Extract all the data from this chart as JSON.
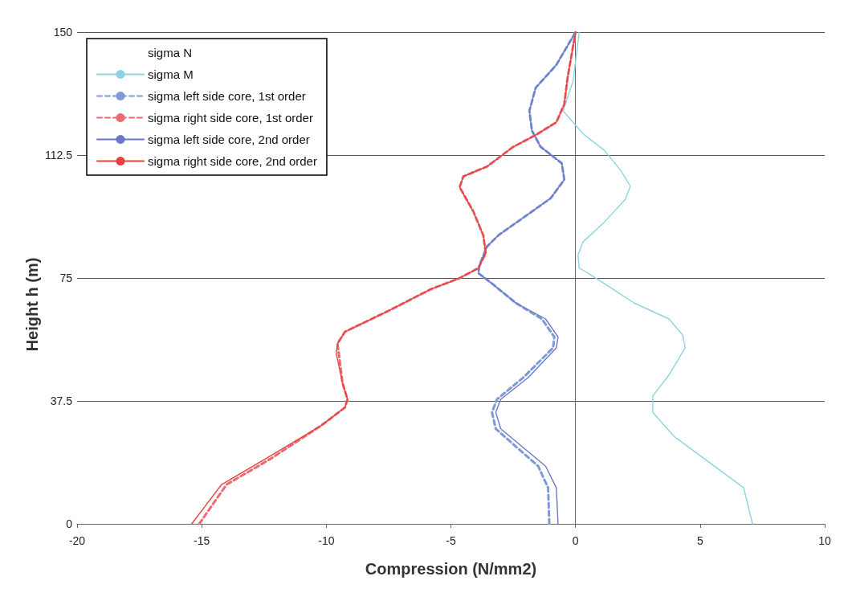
{
  "chart_data": {
    "type": "line",
    "xlabel": "Compression (N/mm2)",
    "ylabel": "Height h (m)",
    "xlim": [
      -20,
      10
    ],
    "xticks": [
      -20,
      -15,
      -10,
      -5,
      0,
      5,
      10
    ],
    "ylim": [
      0,
      150
    ],
    "yticks": [
      0,
      37.5,
      75,
      112.5,
      150
    ],
    "grid": "y",
    "legend": "top left",
    "marker": "none",
    "series": [
      {
        "name": "sigma N"
      },
      {
        "name": "sigma M",
        "color": "#8fd3e0",
        "line_style": "solid",
        "x": [
          7.1,
          6.75,
          5.0,
          3.95,
          3.1,
          3.1,
          3.75,
          4.4,
          4.3,
          3.75,
          2.35,
          0.5,
          0.15,
          0.1,
          0.3,
          1.15,
          2.0,
          2.2,
          1.8,
          1.15,
          0.3,
          -0.5,
          -0.1,
          0.15
        ],
        "values": [
          0,
          11,
          20.8,
          26.7,
          34,
          39,
          45.4,
          53.7,
          57.6,
          62.5,
          67.4,
          76.5,
          78,
          82,
          86,
          92,
          99,
          103,
          108,
          114,
          119,
          126,
          135,
          150
        ]
      },
      {
        "name": "sigma left side core, 1st order",
        "color": "#7d9ad6",
        "line_style": "dashed",
        "x": [
          -1.05,
          -1.1,
          -1.5,
          -3.2,
          -3.35,
          -3.15,
          -2.1,
          -0.9,
          -0.85,
          -1.35,
          -2.4,
          -3.35,
          -3.9,
          -3.85,
          -3.55,
          -3.1,
          -1.0,
          -0.45,
          -0.55,
          -1.4,
          -1.75,
          -1.85,
          -1.6,
          -0.77,
          0
        ],
        "values": [
          0,
          11,
          17.6,
          29,
          34,
          38,
          44.6,
          53.7,
          57,
          62.5,
          67.4,
          73.3,
          76.5,
          79,
          84.6,
          88,
          99.3,
          105,
          110,
          115,
          120,
          126,
          133,
          140,
          150
        ]
      },
      {
        "name": "sigma right side core, 1st order",
        "color": "#ec6a72",
        "line_style": "dashed",
        "x": [
          -15.1,
          -14.0,
          -12.2,
          -10.2,
          -9.25,
          -9.15,
          -9.35,
          -9.5,
          -9.55,
          -9.25,
          -7.5,
          -5.8,
          -4.7,
          -3.9,
          -3.6,
          -3.7,
          -4.1,
          -4.65,
          -4.5,
          -3.55,
          -2.5,
          -1.6,
          -0.77,
          -0.45,
          -0.32,
          -0.13,
          0
        ],
        "values": [
          0,
          12,
          20,
          30,
          35.5,
          38,
          43,
          52,
          55,
          58.6,
          65,
          71.6,
          74.8,
          78,
          82.6,
          88,
          95.3,
          102.7,
          106,
          109,
          115,
          118.6,
          122.5,
          128,
          136,
          144.3,
          150
        ]
      },
      {
        "name": "sigma left side core, 2nd order",
        "color": "#6b78c8",
        "line_style": "solid",
        "x": [
          -0.7,
          -0.77,
          -1.2,
          -3.0,
          -3.2,
          -3.0,
          -1.9,
          -0.77,
          -0.7,
          -1.2,
          -2.4,
          -3.35,
          -3.9,
          -3.85,
          -3.55,
          -3.1,
          -1.0,
          -0.45,
          -0.55,
          -1.4,
          -1.75,
          -1.85,
          -1.6,
          -0.77,
          0
        ],
        "values": [
          0,
          11,
          17.6,
          29,
          34,
          38,
          44.6,
          53.7,
          57,
          62.5,
          67.4,
          73.3,
          76.5,
          79,
          84.6,
          88,
          99.3,
          105,
          110,
          115,
          120,
          126,
          133,
          140,
          150
        ]
      },
      {
        "name": "sigma right side core, 2nd order",
        "color": "#e8413f",
        "line_style": "solid",
        "x": [
          -15.4,
          -14.2,
          -12.4,
          -10.2,
          -9.25,
          -9.15,
          -9.35,
          -9.6,
          -9.55,
          -9.25,
          -7.5,
          -5.8,
          -4.7,
          -3.9,
          -3.6,
          -3.7,
          -4.1,
          -4.65,
          -4.5,
          -3.55,
          -2.5,
          -1.6,
          -0.77,
          -0.45,
          -0.32,
          -0.13,
          0
        ],
        "values": [
          0,
          12,
          20,
          30,
          35.5,
          38,
          43,
          52,
          55,
          58.6,
          65,
          71.6,
          74.8,
          78,
          82.6,
          88,
          95.3,
          102.7,
          106,
          109,
          115,
          118.6,
          122.5,
          128,
          136,
          144.3,
          150
        ]
      }
    ]
  }
}
